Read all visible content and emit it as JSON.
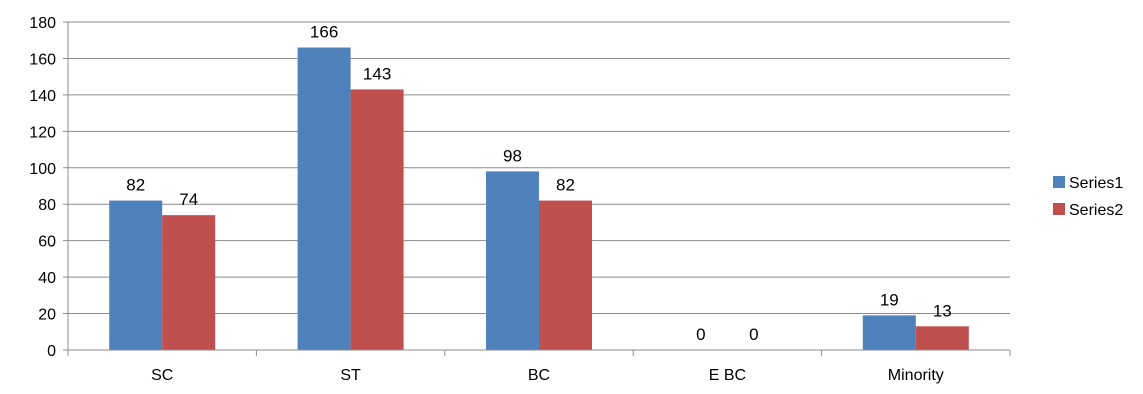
{
  "chart_data": {
    "type": "bar",
    "categories": [
      "SC",
      "ST",
      "BC",
      "E BC",
      "Minority"
    ],
    "series": [
      {
        "name": "Series1",
        "values": [
          82,
          166,
          98,
          0,
          19
        ],
        "color": "#4F81BD"
      },
      {
        "name": "Series2",
        "values": [
          74,
          143,
          82,
          0,
          13
        ],
        "color": "#C0504D"
      }
    ],
    "yticks": [
      "0",
      "20",
      "40",
      "60",
      "80",
      "100",
      "120",
      "140",
      "160",
      "180"
    ],
    "ylim": [
      0,
      180
    ],
    "ystep": 20,
    "grid": true,
    "legend_position": "right",
    "gridline_color": "#8C8C8C",
    "axis_color": "#8C8C8C"
  }
}
